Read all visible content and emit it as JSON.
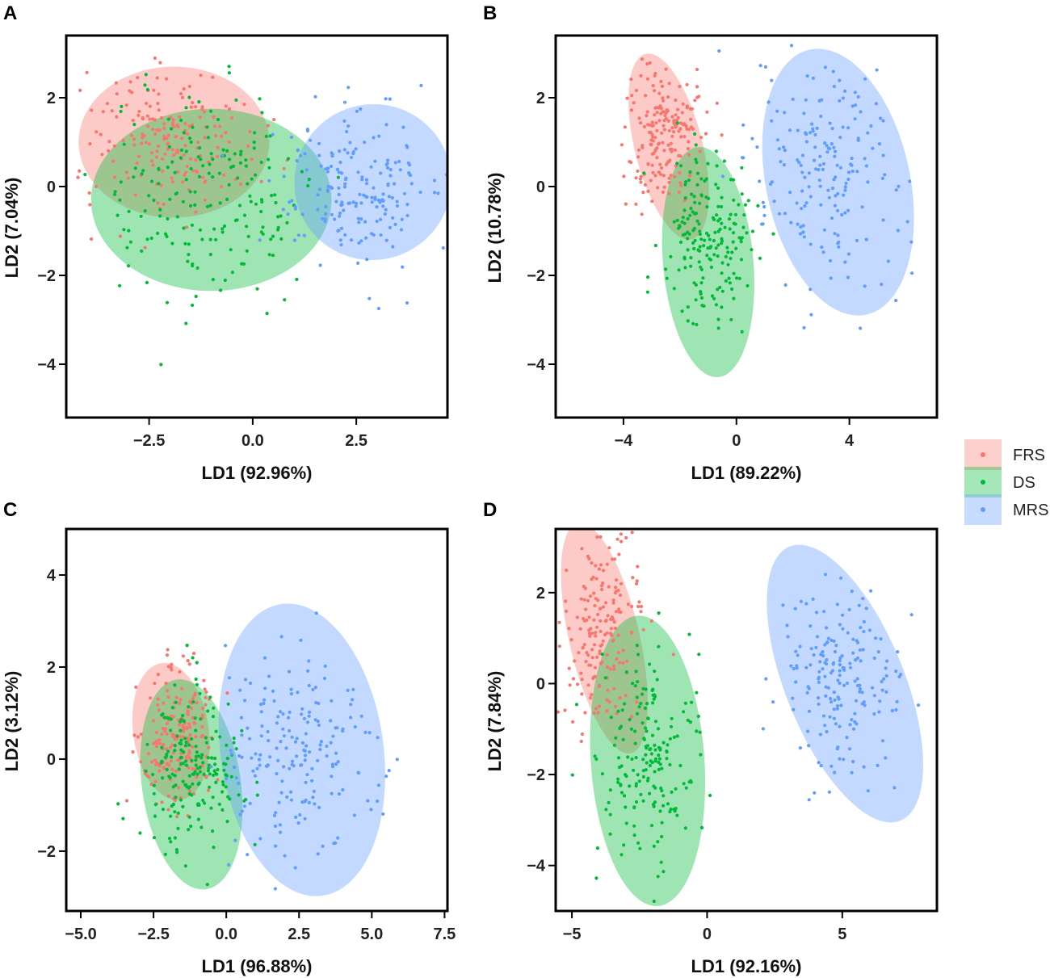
{
  "chart_data": [
    {
      "panel": "A",
      "type": "scatter",
      "xlabel": "LD1 (92.96%)",
      "ylabel": "LD2 (7.04%)",
      "xlim": [
        -4.5,
        4.7
      ],
      "ylim": [
        -5.2,
        3.4
      ],
      "xticks": [
        -2.5,
        0,
        2.5
      ],
      "xtick_labels": [
        "−2.5",
        "0.0",
        "2.5"
      ],
      "yticks": [
        2,
        0,
        -2,
        -4
      ],
      "ytick_labels": [
        "2",
        "0",
        "−2",
        "−4"
      ],
      "series": [
        {
          "name": "FRS",
          "center": [
            -2.0,
            1.1
          ],
          "spread": [
            1.0,
            0.8
          ],
          "ellipse": {
            "center": [
              -1.9,
              1.0
            ],
            "radii": [
              2.3,
              1.7
            ],
            "angle_deg": 0
          }
        },
        {
          "name": "DS",
          "center": [
            -1.2,
            -0.3
          ],
          "spread": [
            1.2,
            1.2
          ],
          "ellipse": {
            "center": [
              -1.0,
              -0.3
            ],
            "radii": [
              2.9,
              2.05
            ],
            "angle_deg": 0
          }
        },
        {
          "name": "MRS",
          "center": [
            2.4,
            0.1
          ],
          "spread": [
            0.9,
            0.85
          ],
          "ellipse": {
            "center": [
              2.9,
              0.1
            ],
            "radii": [
              1.9,
              1.75
            ],
            "angle_deg": 28
          }
        }
      ]
    },
    {
      "panel": "B",
      "type": "scatter",
      "xlabel": "LD1 (89.22%)",
      "ylabel": "LD2 (10.78%)",
      "xlim": [
        -6.4,
        7.1
      ],
      "ylim": [
        -5.2,
        3.4
      ],
      "xticks": [
        -4,
        0,
        4
      ],
      "xtick_labels": [
        "−4",
        "0",
        "4"
      ],
      "yticks": [
        2,
        0,
        -2,
        -4
      ],
      "ytick_labels": [
        "2",
        "0",
        "−2",
        "−4"
      ],
      "series": [
        {
          "name": "FRS",
          "center": [
            -2.6,
            1.2
          ],
          "spread": [
            0.65,
            0.8
          ],
          "ellipse": {
            "center": [
              -2.4,
              0.9
            ],
            "radii": [
              1.2,
              2.15
            ],
            "angle_deg": 14
          }
        },
        {
          "name": "DS",
          "center": [
            -1.0,
            -1.2
          ],
          "spread": [
            0.8,
            1.05
          ],
          "ellipse": {
            "center": [
              -1.0,
              -1.7
            ],
            "radii": [
              1.6,
              2.6
            ],
            "angle_deg": 5
          }
        },
        {
          "name": "MRS",
          "center": [
            3.3,
            0.3
          ],
          "spread": [
            1.4,
            1.2
          ],
          "ellipse": {
            "center": [
              3.6,
              0.1
            ],
            "radii": [
              2.55,
              3.05
            ],
            "angle_deg": 12
          }
        }
      ]
    },
    {
      "panel": "C",
      "type": "scatter",
      "xlabel": "LD1 (96.88%)",
      "ylabel": "LD2 (3.12%)",
      "xlim": [
        -5.5,
        7.6
      ],
      "ylim": [
        -3.3,
        5.0
      ],
      "xticks": [
        -5.0,
        -2.5,
        0,
        2.5,
        5.0,
        7.5
      ],
      "xtick_labels": [
        "−5.0",
        "−2.5",
        "0.0",
        "2.5",
        "5.0",
        "7.5"
      ],
      "yticks": [
        4,
        2,
        0,
        -2
      ],
      "ytick_labels": [
        "4",
        "2",
        "0",
        "−2"
      ],
      "series": [
        {
          "name": "FRS",
          "center": [
            -1.7,
            0.6
          ],
          "spread": [
            0.65,
            0.75
          ],
          "ellipse": {
            "center": [
              -1.9,
              0.6
            ],
            "radii": [
              1.3,
              1.5
            ],
            "angle_deg": 8
          }
        },
        {
          "name": "DS",
          "center": [
            -1.2,
            -0.2
          ],
          "spread": [
            0.85,
            0.8
          ],
          "ellipse": {
            "center": [
              -1.2,
              -0.55
            ],
            "radii": [
              1.7,
              2.3
            ],
            "angle_deg": 8
          }
        },
        {
          "name": "MRS",
          "center": [
            2.4,
            0.1
          ],
          "spread": [
            1.3,
            1.05
          ],
          "ellipse": {
            "center": [
              2.6,
              0.2
            ],
            "radii": [
              2.8,
              3.2
            ],
            "angle_deg": 8
          }
        }
      ]
    },
    {
      "panel": "D",
      "type": "scatter",
      "xlabel": "LD1 (92.16%)",
      "ylabel": "LD2 (7.84%)",
      "xlim": [
        -5.6,
        8.5
      ],
      "ylim": [
        -5.0,
        3.4
      ],
      "xticks": [
        -5,
        0,
        5
      ],
      "xtick_labels": [
        "−5",
        "0",
        "5"
      ],
      "yticks": [
        2,
        0,
        -2,
        -4
      ],
      "ytick_labels": [
        "2",
        "0",
        "−2",
        "−4"
      ],
      "series": [
        {
          "name": "FRS",
          "center": [
            -3.9,
            1.2
          ],
          "spread": [
            0.75,
            0.95
          ],
          "ellipse": {
            "center": [
              -3.8,
              1.0
            ],
            "radii": [
              1.3,
              2.6
            ],
            "angle_deg": 13
          }
        },
        {
          "name": "DS",
          "center": [
            -2.2,
            -1.6
          ],
          "spread": [
            0.95,
            1.1
          ],
          "ellipse": {
            "center": [
              -2.2,
              -1.7
            ],
            "radii": [
              2.1,
              3.2
            ],
            "angle_deg": 4
          }
        },
        {
          "name": "MRS",
          "center": [
            5.0,
            0.1
          ],
          "spread": [
            1.2,
            1.0
          ],
          "ellipse": {
            "center": [
              5.1,
              0.0
            ],
            "radii": [
              2.2,
              3.25
            ],
            "angle_deg": 22
          }
        }
      ]
    }
  ],
  "legend": {
    "items": [
      {
        "label": "FRS",
        "color": "#f8766d"
      },
      {
        "label": "DS",
        "color": "#00ba38"
      },
      {
        "label": "MRS",
        "color": "#619cff"
      }
    ]
  }
}
